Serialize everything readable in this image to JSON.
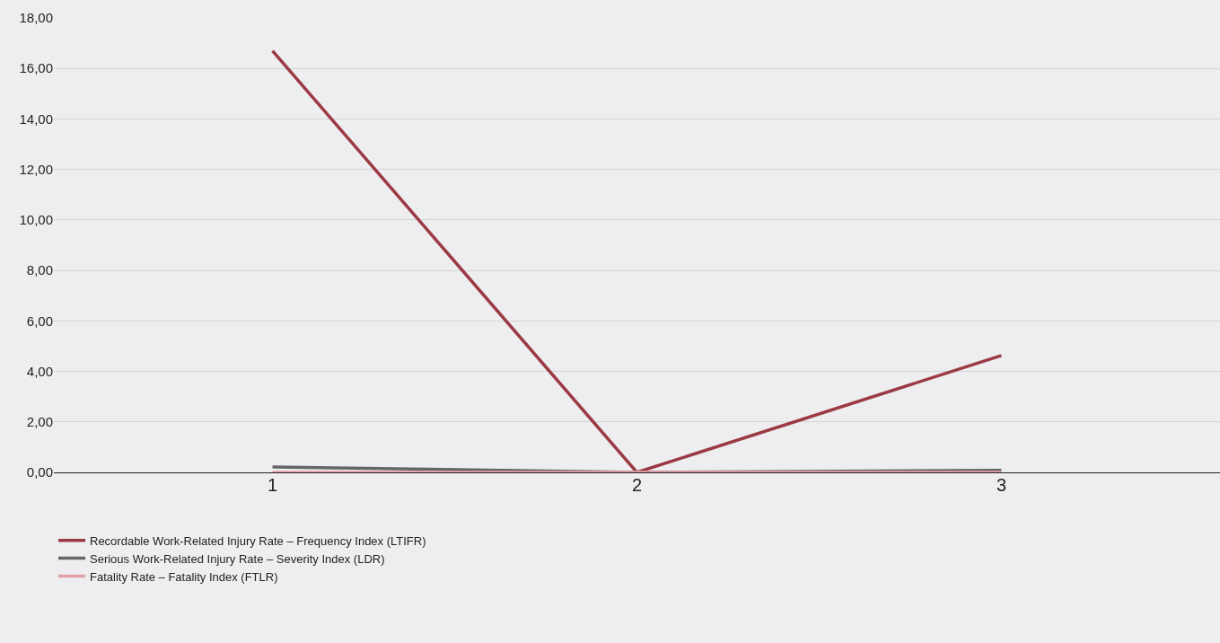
{
  "chart_data": {
    "type": "line",
    "categories": [
      "1",
      "2",
      "3"
    ],
    "series": [
      {
        "name": "Recordable Work-Related Injury Rate – Frequency Index (LTIFR)",
        "color": "#9b3a45",
        "values": [
          16.7,
          0,
          4.63
        ]
      },
      {
        "name": "Serious Work-Related Injury Rate – Severity Index (LDR)",
        "color": "#666666",
        "values": [
          0.21,
          0,
          0.08
        ]
      },
      {
        "name": "Fatality Rate – Fatality Index (FTLR)",
        "color": "#e0a0a6",
        "values": [
          0,
          0,
          0
        ]
      }
    ],
    "ylim": [
      0,
      18
    ],
    "yticks": [
      {
        "value": 0,
        "label": "0,00"
      },
      {
        "value": 2,
        "label": "2,00"
      },
      {
        "value": 4,
        "label": "4,00"
      },
      {
        "value": 6,
        "label": "6,00"
      },
      {
        "value": 8,
        "label": "8,00"
      },
      {
        "value": 10,
        "label": "10,00"
      },
      {
        "value": 12,
        "label": "12,00"
      },
      {
        "value": 14,
        "label": "14,00"
      },
      {
        "value": 16,
        "label": "16,00"
      },
      {
        "value": 18,
        "label": "18,00"
      }
    ],
    "grid": "y",
    "legend": "bottom left",
    "marker": "none",
    "line_style": "solid"
  }
}
